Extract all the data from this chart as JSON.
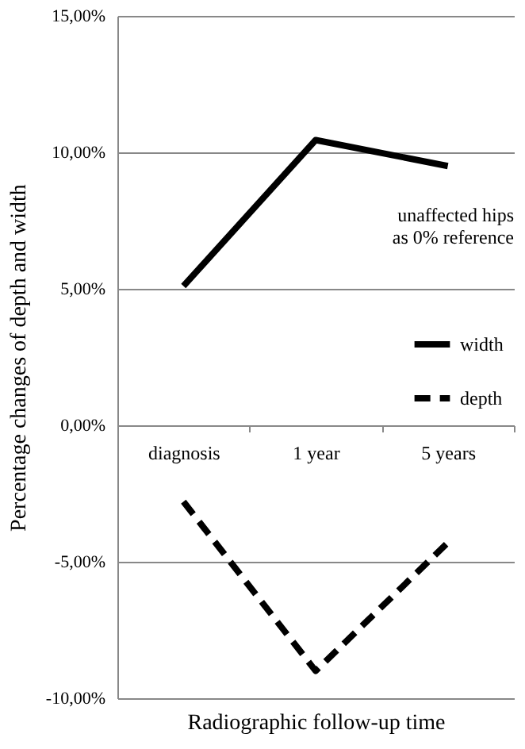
{
  "chart_data": {
    "type": "line",
    "xlabel": "Radiographic follow-up time",
    "ylabel": "Percentage changes of depth and width",
    "categories": [
      "diagnosis",
      "1 year",
      "5 years"
    ],
    "series": [
      {
        "name": "width",
        "color": "#000000",
        "line_style": "solid",
        "values": [
          5.1,
          10.45,
          9.5
        ]
      },
      {
        "name": "depth",
        "color": "#000000",
        "line_style": "dashed",
        "values": [
          -2.8,
          -9.0,
          -4.3
        ]
      }
    ],
    "ylim": [
      -10,
      15
    ],
    "yticks": [
      {
        "value": -10,
        "label": "-10,00%"
      },
      {
        "value": -5,
        "label": "-5,00%"
      },
      {
        "value": 0,
        "label": "0,00%"
      },
      {
        "value": 5,
        "label": "5,00%"
      },
      {
        "value": 10,
        "label": "10,00%"
      },
      {
        "value": 15,
        "label": "15,00%"
      }
    ],
    "grid": "y",
    "legend": "right",
    "annotations": [
      "unaffected hips\nas 0% reference"
    ]
  }
}
